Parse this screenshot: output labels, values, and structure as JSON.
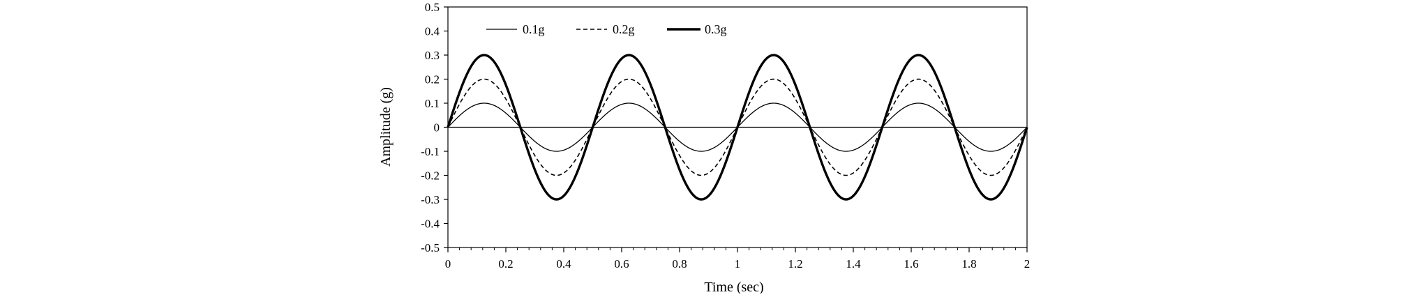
{
  "chart_data": {
    "type": "line",
    "xlabel": "Time  (sec)",
    "ylabel": "Amplitude  (g)",
    "xlim": [
      0,
      2
    ],
    "ylim": [
      -0.5,
      0.5
    ],
    "x_ticks": [
      0,
      0.2,
      0.4,
      0.6,
      0.8,
      1,
      1.2,
      1.4,
      1.6,
      1.8,
      2
    ],
    "x_tick_labels": [
      "0",
      "0.2",
      "0.4",
      "0.6",
      "0.8",
      "1",
      "1.2",
      "1.4",
      "1.6",
      "1.8",
      "2"
    ],
    "y_ticks": [
      0.5,
      0.4,
      0.3,
      0.2,
      0.1,
      0,
      -0.1,
      -0.2,
      -0.3,
      -0.4,
      -0.5
    ],
    "y_tick_labels": [
      "0.5",
      "0.4",
      "0.3",
      "0.2",
      "0.1",
      "0",
      "-0.1",
      "-0.2",
      "-0.3",
      "-0.4",
      "-0.5"
    ],
    "grid": false,
    "legend_position": "top-left",
    "frequency_hz": 2,
    "series": [
      {
        "name": "0.1g",
        "amplitude": 0.1,
        "style": "solid-thin",
        "color": "#000000"
      },
      {
        "name": "0.2g",
        "amplitude": 0.2,
        "style": "dashed",
        "color": "#000000"
      },
      {
        "name": "0.3g",
        "amplitude": 0.3,
        "style": "solid-thick",
        "color": "#000000"
      }
    ]
  }
}
